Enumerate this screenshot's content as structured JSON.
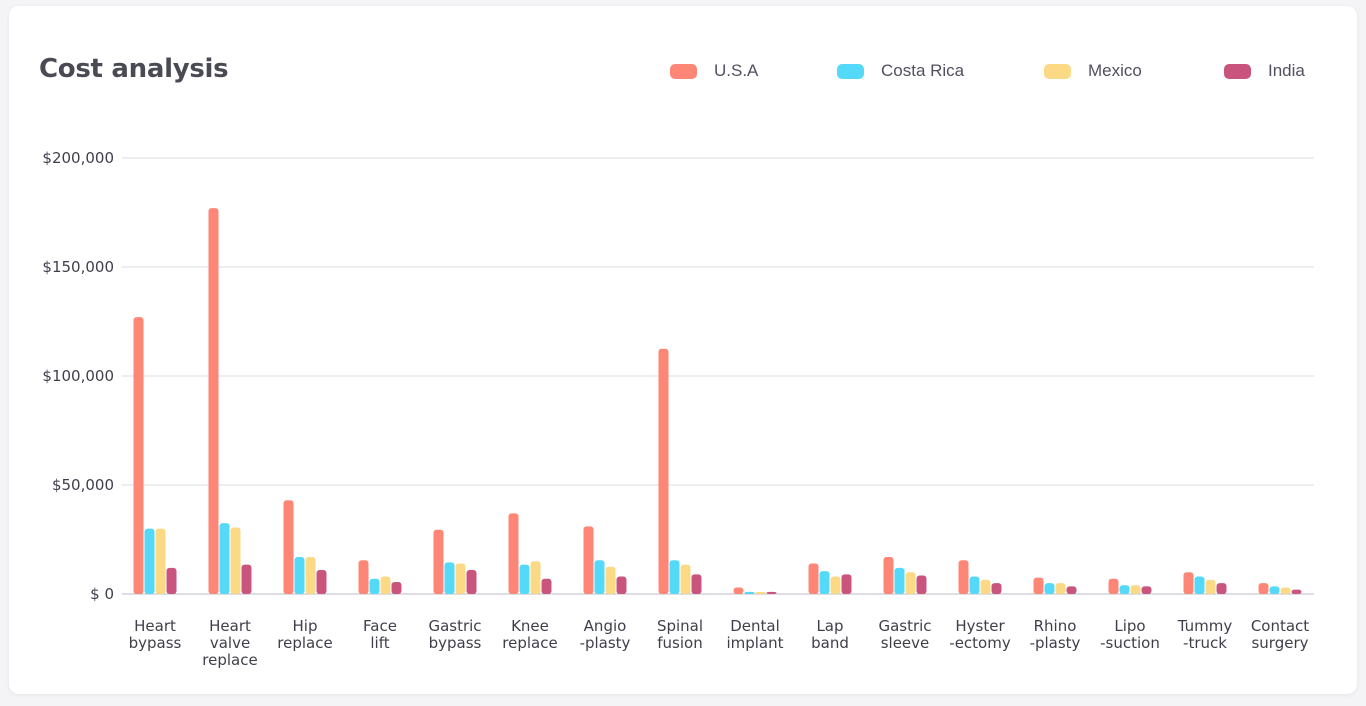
{
  "chart_data": {
    "type": "bar",
    "title": "Cost analysis",
    "xlabel": "",
    "ylabel": "",
    "ylim": [
      0,
      200000
    ],
    "yticks": [
      {
        "value": 0,
        "label": "$ 0"
      },
      {
        "value": 50000,
        "label": "$50,000"
      },
      {
        "value": 100000,
        "label": "$100,000"
      },
      {
        "value": 150000,
        "label": "$150,000"
      },
      {
        "value": 200000,
        "label": "$200,000"
      }
    ],
    "grid": true,
    "legend_position": "top-right",
    "categories": [
      [
        "Heart",
        "bypass"
      ],
      [
        "Heart",
        "valve",
        "replace"
      ],
      [
        "Hip",
        "replace"
      ],
      [
        "Face",
        "lift"
      ],
      [
        "Gastric",
        "bypass"
      ],
      [
        "Knee",
        "replace"
      ],
      [
        "Angio",
        "-plasty"
      ],
      [
        "Spinal",
        "fusion"
      ],
      [
        "Dental",
        "implant"
      ],
      [
        "Lap",
        "band"
      ],
      [
        "Gastric",
        "sleeve"
      ],
      [
        "Hyster",
        "-ectomy"
      ],
      [
        "Rhino",
        "-plasty"
      ],
      [
        "Lipo",
        "-suction"
      ],
      [
        "Tummy",
        "-truck"
      ],
      [
        "Contact",
        "surgery"
      ]
    ],
    "series": [
      {
        "name": "U.S.A",
        "color": "#fd8676",
        "values": [
          127000,
          177000,
          43000,
          15500,
          29500,
          37000,
          31000,
          112500,
          3000,
          14000,
          17000,
          15500,
          7500,
          7000,
          10000,
          5000
        ]
      },
      {
        "name": "Costa Rica",
        "color": "#55d9f8",
        "values": [
          30000,
          32500,
          17000,
          7000,
          14500,
          13500,
          15500,
          15500,
          1000,
          10500,
          12000,
          8000,
          5000,
          4000,
          8000,
          3500
        ]
      },
      {
        "name": "Mexico",
        "color": "#fcd985",
        "values": [
          30000,
          30500,
          17000,
          8000,
          14000,
          15000,
          12500,
          13500,
          1000,
          8000,
          10000,
          6500,
          5000,
          4000,
          6500,
          3000
        ]
      },
      {
        "name": "India",
        "color": "#c9557f",
        "values": [
          12000,
          13500,
          11000,
          5500,
          11000,
          7000,
          8000,
          9000,
          1000,
          9000,
          8500,
          5000,
          3500,
          3500,
          5000,
          2000
        ]
      }
    ]
  }
}
